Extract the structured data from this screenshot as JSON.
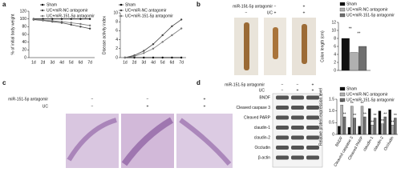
{
  "panel_labels": [
    "a",
    "b",
    "c",
    "d"
  ],
  "panel_b": {
    "rows": [
      {
        "label": "miR-151-5p antagomir",
        "signs": [
          "−",
          "−",
          "+"
        ]
      },
      {
        "label": "UC",
        "signs": [
          "−",
          "+",
          "+"
        ]
      }
    ]
  },
  "panel_c": {
    "rows": [
      {
        "label": "miR-151-5p antagomir",
        "signs": [
          "−",
          "−",
          "+"
        ]
      },
      {
        "label": "UC",
        "signs": [
          "−",
          "+",
          "+"
        ]
      }
    ]
  },
  "panel_d": {
    "rows": [
      {
        "label": "miR-151-5p antagomir",
        "signs": [
          "−",
          "−",
          "+"
        ]
      },
      {
        "label": "UC",
        "signs": [
          "−",
          "+",
          "+"
        ]
      }
    ],
    "blot_labels": [
      "BNDF",
      "Cleaved caspase 3",
      "Cleaved PARP",
      "claudin-1",
      "claudin-2",
      "Occludin",
      "β-actin"
    ]
  },
  "chart_data": [
    {
      "type": "line",
      "ylabel": "% of initial body weight",
      "categories": [
        "1d",
        "2d",
        "3d",
        "4d",
        "5d",
        "6d",
        "7d"
      ],
      "series": [
        {
          "name": "Sham",
          "color": "#000000",
          "values": [
            100,
            100,
            100,
            100,
            100,
            100,
            100
          ]
        },
        {
          "name": "UC+miR-NC antagomir",
          "color": "#444444",
          "values": [
            98,
            96,
            93,
            90,
            85,
            80,
            75
          ]
        },
        {
          "name": "UC+miR-151-5p antagomir",
          "color": "#777777",
          "values": [
            99,
            97,
            95,
            93,
            90,
            87,
            83
          ]
        }
      ],
      "ylim": [
        0,
        120
      ],
      "yticks": [
        0,
        20,
        40,
        60,
        80,
        100,
        120
      ]
    },
    {
      "type": "line",
      "ylabel": "Disease activity index",
      "categories": [
        "1d",
        "2d",
        "3d",
        "4d",
        "5d",
        "6d",
        "7d"
      ],
      "series": [
        {
          "name": "Sham",
          "color": "#000000",
          "values": [
            0,
            0,
            0,
            0,
            0,
            0,
            0
          ]
        },
        {
          "name": "UC+miR-NC antagomir",
          "color": "#444444",
          "values": [
            0,
            0.5,
            1.5,
            3,
            5,
            7,
            8.5
          ]
        },
        {
          "name": "UC+miR-151-5p antagomir",
          "color": "#777777",
          "values": [
            0,
            0.3,
            1,
            2,
            3.5,
            5,
            6.5
          ]
        }
      ],
      "ylim": [
        0,
        10
      ],
      "yticks": [
        0,
        2,
        4,
        6,
        8,
        10
      ]
    },
    {
      "type": "bar",
      "ylabel": "Colon length (cm)",
      "series": [
        {
          "name": "Sham",
          "color": "#111111",
          "values": [
            8
          ]
        },
        {
          "name": "UC+miR-NC antagomir",
          "color": "#b0b0b0",
          "values": [
            4.5
          ]
        },
        {
          "name": "UC+miR-151-5p antagomir",
          "color": "#707070",
          "values": [
            6
          ]
        }
      ],
      "annotations": [
        "**",
        "**"
      ],
      "ylim": [
        0,
        12
      ],
      "yticks": [
        0,
        2,
        4,
        6,
        8,
        10,
        12
      ]
    },
    {
      "type": "bar",
      "ylabel": "Relative protein expression level",
      "categories": [
        "BNDF",
        "Cleaved caspase 3",
        "Cleaved PARP",
        "claudin-1",
        "claudin-2",
        "Occludin"
      ],
      "series": [
        {
          "name": "Sham",
          "color": "#111111",
          "values": [
            0.35,
            0.3,
            0.35,
            1.1,
            1.0,
            1.05
          ]
        },
        {
          "name": "UC+miR-NC antagomir",
          "color": "#b0b0b0",
          "values": [
            1.25,
            1.2,
            1.2,
            0.4,
            0.45,
            0.4
          ]
        },
        {
          "name": "UC+miR-151-5p antagomir",
          "color": "#707070",
          "values": [
            0.75,
            0.7,
            0.75,
            0.7,
            0.75,
            0.7
          ]
        }
      ],
      "annotations": [
        "**",
        "**",
        "**",
        "**",
        "**",
        "**",
        "**",
        "**",
        "**",
        "**",
        "**",
        "**"
      ],
      "ylim": [
        0,
        1.5
      ],
      "yticks": [
        0,
        0.5,
        {
          "value": 1,
          "label": "1.0"
        },
        1.5
      ]
    }
  ]
}
